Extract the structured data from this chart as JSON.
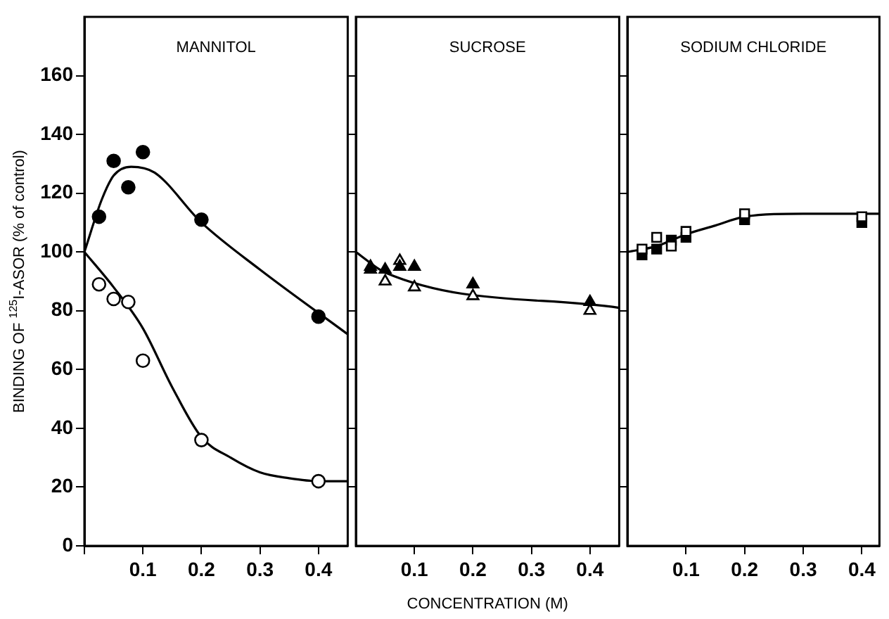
{
  "chart_data": [
    {
      "type": "scatter",
      "title": "MANNITOL",
      "ylabel": "BINDING OF $^{125}$I-ASOR (% of control)",
      "xlim": [
        0,
        0.45
      ],
      "xticks": [
        {
          "value": 0,
          "label": null
        },
        0.1,
        0.2,
        0.3,
        0.4
      ],
      "ylim": [
        0,
        180
      ],
      "yticks": [
        0,
        20,
        40,
        60,
        80,
        100,
        120,
        140,
        160
      ],
      "series": [
        {
          "type": "scatter",
          "marker": "circle",
          "color": "#000000",
          "x": [
            0.025,
            0.05,
            0.075,
            0.1,
            0.2,
            0.4
          ],
          "values": [
            112,
            131,
            122,
            134,
            111,
            78
          ]
        },
        {
          "type": "scatter",
          "marker": "circle",
          "color": "#ffffff",
          "x": [
            0.025,
            0.05,
            0.075,
            0.1,
            0.2,
            0.4
          ],
          "values": [
            89,
            84,
            83,
            63,
            36,
            22
          ]
        },
        {
          "type": "line",
          "marker": "none",
          "color": "#000000",
          "x": [
            0,
            0.03,
            0.05,
            0.08,
            0.12,
            0.2,
            0.3,
            0.45
          ],
          "values": [
            100,
            118,
            126,
            129,
            127,
            110,
            94,
            72
          ]
        },
        {
          "type": "line",
          "marker": "none",
          "color": "#000000",
          "x": [
            0,
            0.05,
            0.1,
            0.15,
            0.2,
            0.25,
            0.3,
            0.35,
            0.4,
            0.45
          ],
          "values": [
            100,
            88,
            74,
            54,
            37,
            30,
            25,
            23,
            22,
            22
          ]
        }
      ]
    },
    {
      "type": "scatter",
      "title": "SUCROSE",
      "xlabel": "CONCENTRATION (M)",
      "tick_labels": "x",
      "xlim": [
        0,
        0.45
      ],
      "xticks": [
        0.1,
        0.2,
        0.3,
        0.4
      ],
      "ylim": [
        0,
        180
      ],
      "yticks": [
        20,
        40,
        60,
        80,
        100,
        120,
        140,
        160
      ],
      "series": [
        {
          "type": "scatter",
          "marker": "triangle",
          "color": "#ffffff",
          "x": [
            0.025,
            0.05,
            0.075,
            0.1,
            0.2,
            0.4
          ],
          "values": [
            95,
            90,
            97,
            88,
            85,
            80
          ]
        },
        {
          "type": "scatter",
          "marker": "triangle",
          "color": "#000000",
          "x": [
            0.025,
            0.05,
            0.075,
            0.1,
            0.2,
            0.4
          ],
          "values": [
            94,
            94,
            95,
            95,
            89,
            83
          ]
        },
        {
          "type": "line",
          "marker": "none",
          "color": "#000000",
          "x": [
            0,
            0.05,
            0.45
          ],
          "values": [
            100,
            93,
            81
          ]
        }
      ]
    },
    {
      "type": "scatter",
      "title": "SODIUM CHLORIDE",
      "tick_labels": "x",
      "xlim": [
        0,
        0.43
      ],
      "xticks": [
        0.1,
        0.2,
        0.3,
        0.4
      ],
      "ylim": [
        0,
        180
      ],
      "yticks": [
        20,
        40,
        60,
        80,
        100,
        120,
        140,
        160
      ],
      "series": [
        {
          "type": "scatter",
          "marker": "square",
          "color": "#000000",
          "x": [
            0.025,
            0.05,
            0.075,
            0.1,
            0.2,
            0.4
          ],
          "values": [
            99,
            101,
            104,
            105,
            111,
            110
          ]
        },
        {
          "type": "scatter",
          "marker": "square",
          "color": "#ffffff",
          "x": [
            0.025,
            0.05,
            0.075,
            0.1,
            0.2,
            0.4
          ],
          "values": [
            101,
            105,
            102,
            107,
            113,
            112
          ]
        },
        {
          "type": "line",
          "marker": "none",
          "color": "#000000",
          "x": [
            0,
            0.05,
            0.1,
            0.15,
            0.2,
            0.3,
            0.43
          ],
          "values": [
            100,
            102,
            106,
            109,
            112,
            113,
            113
          ]
        }
      ]
    }
  ]
}
